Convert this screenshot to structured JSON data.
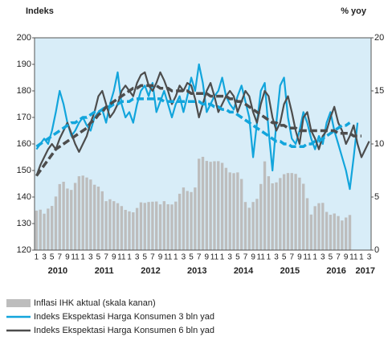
{
  "chart_data": {
    "type": "combo",
    "ylabel": "Indeks",
    "y2label": "% yoy",
    "categories": [
      "1",
      null,
      "3",
      null,
      "5",
      null,
      "7",
      null,
      "9",
      null,
      "11",
      null,
      "1",
      null,
      "3",
      null,
      "5",
      null,
      "7",
      null,
      "9",
      null,
      "11",
      null,
      "1",
      null,
      "3",
      null,
      "5",
      null,
      "7",
      null,
      "9",
      null,
      "11",
      null,
      "1",
      null,
      "3",
      null,
      "5",
      null,
      "7",
      null,
      "9",
      null,
      "11",
      null,
      "1",
      null,
      "3",
      null,
      "5",
      null,
      "7",
      null,
      "9",
      null,
      "11",
      null,
      "1",
      null,
      "3",
      null,
      "5",
      null,
      "7",
      null,
      "9",
      null,
      "11",
      null,
      "1",
      null,
      "3",
      null,
      "5",
      null,
      "7",
      null,
      "9",
      null,
      "11",
      null,
      "1",
      null,
      "3"
    ],
    "years": [
      "2010",
      "2011",
      "2012",
      "2013",
      "2014",
      "2015",
      "2016",
      "2017"
    ],
    "ylim": [
      120,
      200
    ],
    "yticks": [
      120,
      130,
      140,
      150,
      160,
      170,
      180,
      190,
      200
    ],
    "y2lim": [
      0,
      20
    ],
    "y2ticks": [
      0,
      5,
      10,
      15,
      20
    ],
    "background": "#d8edf8",
    "series": [
      {
        "name": "Inflasi IHK aktual (skala kanan)",
        "type": "bar",
        "axis": "y2",
        "color": "#bdbdbd",
        "values": [
          3.72,
          3.81,
          3.43,
          3.91,
          4.16,
          5.05,
          6.22,
          6.44,
          5.8,
          5.67,
          6.33,
          6.96,
          7.02,
          6.84,
          6.65,
          6.16,
          5.98,
          5.54,
          4.61,
          4.79,
          4.61,
          4.42,
          4.15,
          3.79,
          3.65,
          3.56,
          3.97,
          4.5,
          4.45,
          4.53,
          4.56,
          4.58,
          4.31,
          4.61,
          4.32,
          4.3,
          4.57,
          5.31,
          5.9,
          5.57,
          5.47,
          5.9,
          8.61,
          8.79,
          8.4,
          8.32,
          8.37,
          8.38,
          8.22,
          7.75,
          7.32,
          7.25,
          7.32,
          6.7,
          4.53,
          3.99,
          4.53,
          4.83,
          6.23,
          8.36,
          6.96,
          6.29,
          6.38,
          6.79,
          7.15,
          7.26,
          7.26,
          7.18,
          6.83,
          6.25,
          4.89,
          3.35,
          4.14,
          4.42,
          4.45,
          3.6,
          3.33,
          3.45,
          3.21,
          2.79,
          3.07,
          3.31,
          null,
          null,
          null,
          null,
          null
        ]
      },
      {
        "name": "Indeks Ekspektasi Harga Konsumen 3 bln yad",
        "type": "line",
        "color": "#12a5dc",
        "values": [
          158,
          160,
          162,
          160,
          165,
          172,
          180,
          175,
          168,
          163,
          165,
          168,
          170,
          167,
          165,
          170,
          172,
          173,
          168,
          175,
          180,
          187,
          175,
          170,
          172,
          168,
          175,
          180,
          182,
          178,
          183,
          172,
          176,
          180,
          175,
          170,
          175,
          178,
          172,
          178,
          185,
          180,
          190,
          183,
          172,
          175,
          178,
          180,
          185,
          178,
          175,
          173,
          178,
          182,
          176,
          170,
          155,
          168,
          180,
          183,
          165,
          150,
          168,
          182,
          185,
          170,
          162,
          160,
          165,
          172,
          168,
          162,
          158,
          163,
          160,
          168,
          172,
          165,
          160,
          155,
          150,
          143,
          155,
          168,
          null,
          null,
          null
        ]
      },
      {
        "name": "Indeks Ekspektasi Harga Konsumen 6 bln yad",
        "type": "line",
        "color": "#4d4d4d",
        "values": [
          148,
          152,
          155,
          158,
          160,
          158,
          162,
          165,
          168,
          164,
          160,
          157,
          160,
          163,
          168,
          172,
          178,
          180,
          175,
          170,
          172,
          175,
          180,
          182,
          180,
          178,
          183,
          186,
          187,
          182,
          180,
          183,
          187,
          184,
          180,
          175,
          178,
          182,
          180,
          183,
          182,
          177,
          170,
          175,
          180,
          183,
          178,
          172,
          175,
          178,
          180,
          178,
          172,
          176,
          180,
          178,
          172,
          168,
          175,
          180,
          178,
          170,
          165,
          168,
          175,
          178,
          172,
          165,
          160,
          170,
          172,
          165,
          162,
          158,
          163,
          165,
          170,
          174,
          168,
          165,
          160,
          163,
          167,
          160,
          155,
          158,
          161
        ]
      },
      {
        "type": "line",
        "dashed": true,
        "color": "#12a5dc",
        "values": [
          159,
          160,
          161,
          162,
          163,
          164,
          165,
          166,
          167,
          168,
          168,
          169,
          170,
          170,
          171,
          172,
          172,
          173,
          174,
          174,
          175,
          175,
          176,
          176,
          176,
          177,
          177,
          177,
          177,
          177,
          177,
          177,
          177,
          176,
          176,
          176,
          176,
          176,
          176,
          176,
          176,
          176,
          176,
          175,
          175,
          175,
          174,
          174,
          173,
          173,
          172,
          172,
          171,
          170,
          169,
          168,
          167,
          166,
          165,
          164,
          163,
          162,
          161,
          161,
          160,
          160,
          159,
          159,
          159,
          159,
          160,
          160,
          161,
          161,
          162,
          163,
          164,
          165,
          166,
          167,
          167,
          168,
          null,
          null,
          null,
          null,
          null
        ]
      },
      {
        "type": "line",
        "dashed": true,
        "color": "#4d4d4d",
        "values": [
          148,
          150,
          152,
          154,
          156,
          158,
          159,
          160,
          161,
          162,
          163,
          164,
          165,
          166,
          168,
          169,
          171,
          172,
          174,
          175,
          176,
          177,
          178,
          179,
          180,
          181,
          181,
          182,
          182,
          182,
          182,
          182,
          181,
          181,
          181,
          180,
          180,
          180,
          180,
          180,
          179,
          179,
          179,
          179,
          179,
          178,
          178,
          178,
          178,
          178,
          177,
          177,
          176,
          176,
          175,
          174,
          173,
          172,
          171,
          170,
          169,
          168,
          168,
          167,
          167,
          166,
          166,
          166,
          165,
          165,
          165,
          165,
          165,
          165,
          165,
          165,
          165,
          165,
          164,
          164,
          164,
          164,
          163,
          163,
          163,
          null,
          null
        ]
      }
    ]
  }
}
